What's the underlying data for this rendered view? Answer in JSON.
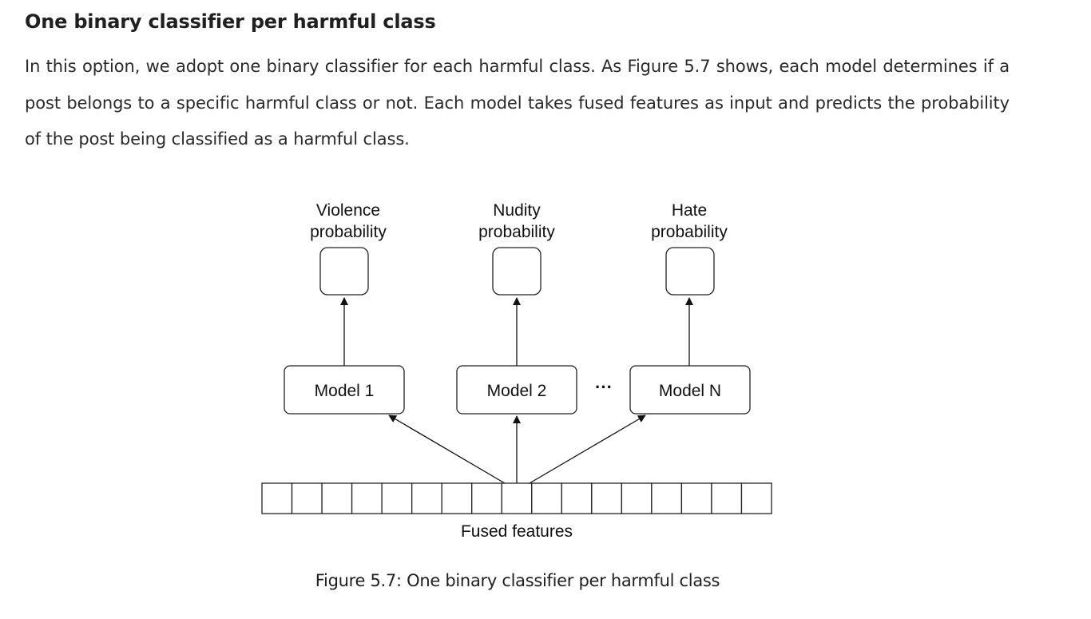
{
  "section": {
    "heading": "One binary classifier per harmful class",
    "paragraph": "In this option, we adopt one binary classifier for each harmful class. As Figure 5.7 shows, each model determines if a post belongs to a specific harmful class or not. Each model takes fused features as input and predicts the probability of the post being classified as a harmful class."
  },
  "figure": {
    "outputs": [
      {
        "line1": "Violence",
        "line2": "probability"
      },
      {
        "line1": "Nudity",
        "line2": "probability"
      },
      {
        "line1": "Hate",
        "line2": "probability"
      }
    ],
    "models": [
      "Model 1",
      "Model 2",
      "Model N"
    ],
    "ellipsis": "···",
    "feature_label": "Fused features",
    "caption": "Figure 5.7: One binary classifier per harmful class"
  }
}
